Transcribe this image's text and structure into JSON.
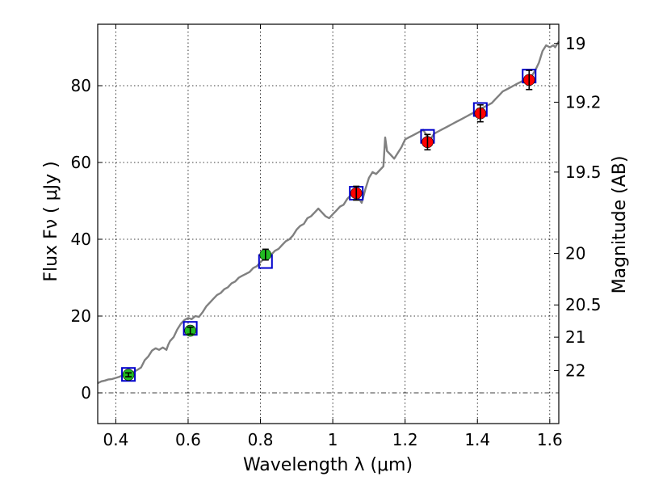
{
  "chart_data": {
    "type": "scatter",
    "xlabel": "Wavelength  λ (μm)",
    "ylabel": "Flux  Fν  ( μJy )",
    "ylabel_right": "Magnitude (AB)",
    "xlim": [
      0.35,
      1.625
    ],
    "ylim": [
      -8,
      96
    ],
    "x_ticks": [
      0.4,
      0.6,
      0.8,
      1.0,
      1.2,
      1.4,
      1.6
    ],
    "x_tick_labels": [
      "0.4",
      "0.6",
      "0.8",
      "1",
      "1.2",
      "1.4",
      "1.6"
    ],
    "y_ticks": [
      0,
      20,
      40,
      60,
      80
    ],
    "y_tick_labels": [
      "0",
      "20",
      "40",
      "60",
      "80"
    ],
    "right_ticks": [
      {
        "label": "19",
        "flux": 91
      },
      {
        "label": "19.2",
        "flux": 75.7
      },
      {
        "label": "19.5",
        "flux": 57.5
      },
      {
        "label": "20",
        "flux": 36.3
      },
      {
        "label": "20.5",
        "flux": 22.9
      },
      {
        "label": "21",
        "flux": 14.5
      },
      {
        "label": "22",
        "flux": 5.8
      }
    ],
    "grid": true,
    "reference_line_y": 0,
    "model_spectrum": {
      "color": "#808080",
      "points": [
        [
          0.35,
          2.5
        ],
        [
          0.36,
          3.0
        ],
        [
          0.37,
          3.2
        ],
        [
          0.38,
          3.5
        ],
        [
          0.39,
          3.6
        ],
        [
          0.4,
          3.9
        ],
        [
          0.41,
          4.2
        ],
        [
          0.42,
          4.6
        ],
        [
          0.43,
          4.8
        ],
        [
          0.44,
          5.3
        ],
        [
          0.45,
          5.5
        ],
        [
          0.46,
          6.0
        ],
        [
          0.47,
          6.6
        ],
        [
          0.48,
          8.5
        ],
        [
          0.49,
          9.5
        ],
        [
          0.5,
          11.0
        ],
        [
          0.51,
          11.6
        ],
        [
          0.52,
          11.2
        ],
        [
          0.53,
          11.8
        ],
        [
          0.54,
          11.2
        ],
        [
          0.545,
          12.5
        ],
        [
          0.55,
          13.5
        ],
        [
          0.56,
          14.5
        ],
        [
          0.57,
          16.5
        ],
        [
          0.58,
          18.0
        ],
        [
          0.59,
          19.0
        ],
        [
          0.6,
          19.5
        ],
        [
          0.61,
          19.2
        ],
        [
          0.62,
          20.0
        ],
        [
          0.63,
          19.8
        ],
        [
          0.64,
          21.0
        ],
        [
          0.65,
          22.5
        ],
        [
          0.66,
          23.5
        ],
        [
          0.67,
          24.5
        ],
        [
          0.68,
          25.5
        ],
        [
          0.69,
          26.0
        ],
        [
          0.7,
          27.0
        ],
        [
          0.71,
          27.5
        ],
        [
          0.72,
          28.5
        ],
        [
          0.73,
          29.0
        ],
        [
          0.74,
          30.0
        ],
        [
          0.75,
          30.5
        ],
        [
          0.76,
          31.0
        ],
        [
          0.77,
          31.5
        ],
        [
          0.78,
          32.5
        ],
        [
          0.79,
          33.0
        ],
        [
          0.8,
          34.0
        ],
        [
          0.81,
          35.0
        ],
        [
          0.82,
          35.5
        ],
        [
          0.83,
          36.0
        ],
        [
          0.84,
          37.0
        ],
        [
          0.85,
          37.5
        ],
        [
          0.86,
          38.5
        ],
        [
          0.87,
          39.5
        ],
        [
          0.88,
          40.0
        ],
        [
          0.89,
          41.0
        ],
        [
          0.9,
          42.5
        ],
        [
          0.91,
          43.5
        ],
        [
          0.92,
          44.0
        ],
        [
          0.93,
          45.5
        ],
        [
          0.94,
          46.0
        ],
        [
          0.95,
          47.0
        ],
        [
          0.96,
          48.0
        ],
        [
          0.97,
          47.0
        ],
        [
          0.98,
          46.0
        ],
        [
          0.99,
          45.5
        ],
        [
          1.0,
          46.5
        ],
        [
          1.01,
          47.5
        ],
        [
          1.02,
          48.5
        ],
        [
          1.03,
          49.0
        ],
        [
          1.04,
          50.5
        ],
        [
          1.05,
          51.5
        ],
        [
          1.06,
          52.5
        ],
        [
          1.07,
          51.0
        ],
        [
          1.08,
          49.5
        ],
        [
          1.09,
          53.0
        ],
        [
          1.1,
          56.0
        ],
        [
          1.11,
          57.5
        ],
        [
          1.12,
          57.0
        ],
        [
          1.13,
          58.0
        ],
        [
          1.14,
          59.0
        ],
        [
          1.145,
          66.5
        ],
        [
          1.15,
          63.0
        ],
        [
          1.16,
          62.0
        ],
        [
          1.17,
          61.0
        ],
        [
          1.18,
          62.5
        ],
        [
          1.19,
          64.0
        ],
        [
          1.2,
          66.0
        ],
        [
          1.21,
          66.5
        ],
        [
          1.22,
          67.0
        ],
        [
          1.23,
          67.5
        ],
        [
          1.24,
          68.0
        ],
        [
          1.25,
          68.5
        ],
        [
          1.26,
          67.0
        ],
        [
          1.27,
          66.0
        ],
        [
          1.28,
          67.5
        ],
        [
          1.29,
          68.0
        ],
        [
          1.3,
          68.5
        ],
        [
          1.31,
          69.0
        ],
        [
          1.32,
          69.5
        ],
        [
          1.33,
          70.0
        ],
        [
          1.34,
          70.5
        ],
        [
          1.35,
          71.0
        ],
        [
          1.36,
          71.5
        ],
        [
          1.37,
          72.0
        ],
        [
          1.38,
          72.5
        ],
        [
          1.39,
          73.0
        ],
        [
          1.4,
          73.5
        ],
        [
          1.41,
          74.0
        ],
        [
          1.42,
          74.5
        ],
        [
          1.43,
          75.0
        ],
        [
          1.44,
          75.5
        ],
        [
          1.45,
          76.5
        ],
        [
          1.46,
          77.5
        ],
        [
          1.47,
          78.5
        ],
        [
          1.48,
          79.0
        ],
        [
          1.49,
          79.5
        ],
        [
          1.5,
          80.0
        ],
        [
          1.51,
          80.5
        ],
        [
          1.52,
          81.0
        ],
        [
          1.53,
          81.5
        ],
        [
          1.54,
          82.0
        ],
        [
          1.55,
          82.5
        ],
        [
          1.56,
          84.0
        ],
        [
          1.57,
          86.0
        ],
        [
          1.58,
          89.0
        ],
        [
          1.59,
          90.5
        ],
        [
          1.6,
          90.0
        ],
        [
          1.61,
          90.5
        ],
        [
          1.615,
          90.0
        ],
        [
          1.625,
          91.5
        ]
      ]
    },
    "model_points": [
      {
        "x": 0.435,
        "y": 4.8
      },
      {
        "x": 0.606,
        "y": 16.8
      },
      {
        "x": 0.814,
        "y": 34.2
      },
      {
        "x": 1.065,
        "y": 52.0
      },
      {
        "x": 1.262,
        "y": 66.8
      },
      {
        "x": 1.408,
        "y": 73.8
      },
      {
        "x": 1.543,
        "y": 82.5
      }
    ],
    "observed_points": [
      {
        "x": 0.435,
        "y": 4.7,
        "err": 0.5,
        "color": "#22bb22"
      },
      {
        "x": 0.606,
        "y": 16.2,
        "err": 0.9,
        "color": "#22bb22"
      },
      {
        "x": 0.814,
        "y": 36.0,
        "err": 1.4,
        "color": "#22bb22"
      },
      {
        "x": 1.065,
        "y": 52.0,
        "err": 1.8,
        "color": "#ff0000"
      },
      {
        "x": 1.262,
        "y": 65.3,
        "err": 2.0,
        "color": "#ff0000"
      },
      {
        "x": 1.408,
        "y": 72.8,
        "err": 2.2,
        "color": "#ff0000"
      },
      {
        "x": 1.543,
        "y": 81.5,
        "err": 2.5,
        "color": "#ff0000"
      }
    ],
    "model_point_color": "#0000cc"
  }
}
